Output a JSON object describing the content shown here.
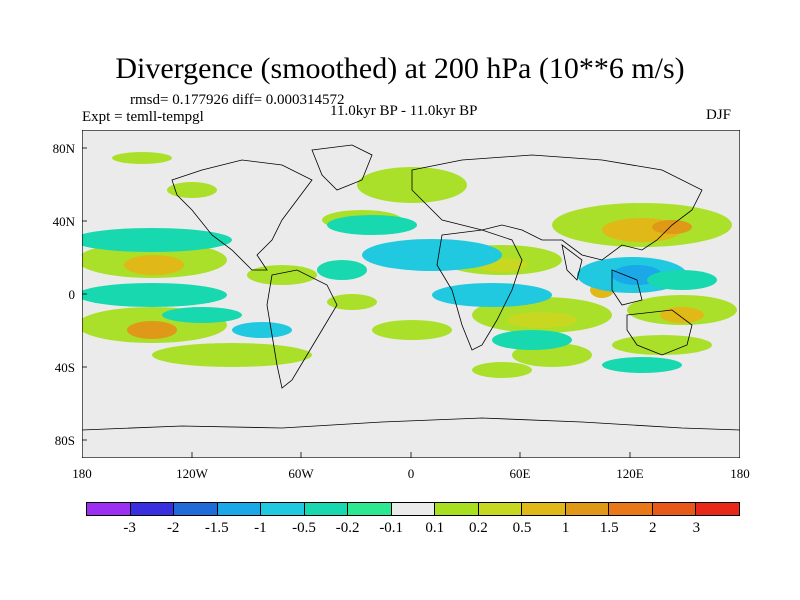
{
  "title": "Divergence (smoothed) at 200 hPa (10**6 m/s)",
  "stats": "rmsd= 0.177926 diff= 0.000314572",
  "experiment": "Expt = temll-tempgl",
  "period": "11.0kyr BP - 11.0kyr BP",
  "season": "DJF",
  "y_axis_labels": [
    "80N",
    "40N",
    "0",
    "40S",
    "80S"
  ],
  "x_axis_labels": [
    "180",
    "120W",
    "60W",
    "0",
    "60E",
    "120E",
    "180"
  ],
  "colorbar": {
    "colors": [
      "#9b30f0",
      "#3a2fe0",
      "#1f6bd8",
      "#1aa8e8",
      "#20c8e0",
      "#18d8b0",
      "#2ce890",
      "#ebebeb",
      "#a8e020",
      "#c8d820",
      "#e0b818",
      "#e09818",
      "#e87818",
      "#e85818",
      "#e82818"
    ],
    "labels": [
      "-3",
      "-2",
      "-1.5",
      "-1",
      "-0.5",
      "-0.2",
      "-0.1",
      "0.1",
      "0.2",
      "0.5",
      "1",
      "1.5",
      "2",
      "3"
    ]
  },
  "palette": {
    "ocean_bg": "#ebebeb",
    "coast": "#000000",
    "green": "#a8e020",
    "yellow": "#c8d820",
    "orange": "#e0b818",
    "dark_orange": "#e09818",
    "cyan": "#20c8e0",
    "teal": "#18d8b0",
    "blue": "#1aa8e8"
  }
}
